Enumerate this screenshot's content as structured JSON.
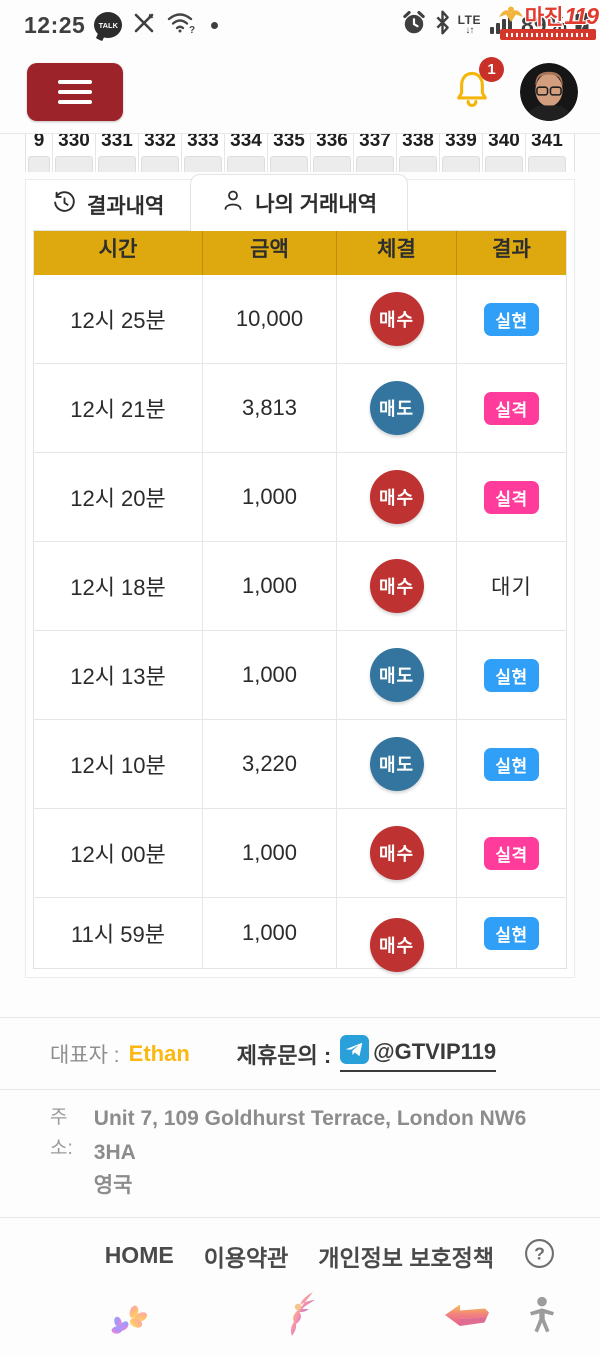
{
  "status_bar": {
    "time": "12:25",
    "talk_label": "TALK",
    "network_label": "LTE",
    "network_arrows": "↓↑",
    "battery_percent": "89%",
    "icons": [
      "kakaotalk-icon",
      "pen-cross-icon",
      "wifi-question-icon",
      "notification-dot",
      "alarm-clock-icon",
      "bluetooth-icon",
      "signal-bars-icon",
      "battery-charging-icon"
    ]
  },
  "watermark": {
    "brand_kr": "마진",
    "brand_num": "119"
  },
  "header": {
    "notification_count": "1",
    "icons": [
      "menu-icon",
      "bell-icon",
      "avatar"
    ]
  },
  "pagination": {
    "numbers": [
      "9",
      "330",
      "331",
      "332",
      "333",
      "334",
      "335",
      "336",
      "337",
      "338",
      "339",
      "340",
      "341"
    ]
  },
  "tabs": [
    {
      "label": "결과내역",
      "icon": "history-icon",
      "active": false
    },
    {
      "label": "나의 거래내역",
      "icon": "user-icon",
      "active": true
    }
  ],
  "table": {
    "columns": [
      "시간",
      "금액",
      "체결",
      "결과"
    ],
    "rows": [
      {
        "time": "12시 25분",
        "amount": "10,000",
        "side": "매수",
        "side_type": "buy",
        "result": "실현",
        "result_type": "realized"
      },
      {
        "time": "12시 21분",
        "amount": "3,813",
        "side": "매도",
        "side_type": "sell",
        "result": "실격",
        "result_type": "disqualified"
      },
      {
        "time": "12시 20분",
        "amount": "1,000",
        "side": "매수",
        "side_type": "buy",
        "result": "실격",
        "result_type": "disqualified"
      },
      {
        "time": "12시 18분",
        "amount": "1,000",
        "side": "매수",
        "side_type": "buy",
        "result": "대기",
        "result_type": "waiting"
      },
      {
        "time": "12시 13분",
        "amount": "1,000",
        "side": "매도",
        "side_type": "sell",
        "result": "실현",
        "result_type": "realized"
      },
      {
        "time": "12시 10분",
        "amount": "3,220",
        "side": "매도",
        "side_type": "sell",
        "result": "실현",
        "result_type": "realized"
      },
      {
        "time": "12시 00분",
        "amount": "1,000",
        "side": "매수",
        "side_type": "buy",
        "result": "실격",
        "result_type": "disqualified"
      },
      {
        "time": "11시 59분",
        "amount": "1,000",
        "side": "매수",
        "side_type": "buy",
        "result": "실현",
        "result_type": "realized"
      }
    ]
  },
  "footer": {
    "rep_label": "대표자 :",
    "rep_name": "Ethan",
    "contact_label": "제휴문의 :",
    "contact_icon": "telegram-icon",
    "contact_handle": "@GTVIP119",
    "address_label": "주소:",
    "address_line1": "Unit 7, 109 Goldhurst Terrace, London NW6 3HA",
    "address_line2": "영국"
  },
  "nav": {
    "items": [
      "HOME",
      "이용약관",
      "개인정보 보호정책"
    ],
    "help_icon": "question-circle-icon"
  },
  "bottom_icons": [
    "flowers-icon",
    "fairy-icon",
    "back-arrow-icon",
    "accessibility-person-icon"
  ],
  "colors": {
    "gold_header": "#dda90e",
    "buy_red": "#be3231",
    "sell_blue": "#33759f",
    "realized_blue": "#2f9ff8",
    "disqualified_pink": "#ff3c9c",
    "brand_red": "#9d232b",
    "bell_gold": "#f2b70a"
  }
}
